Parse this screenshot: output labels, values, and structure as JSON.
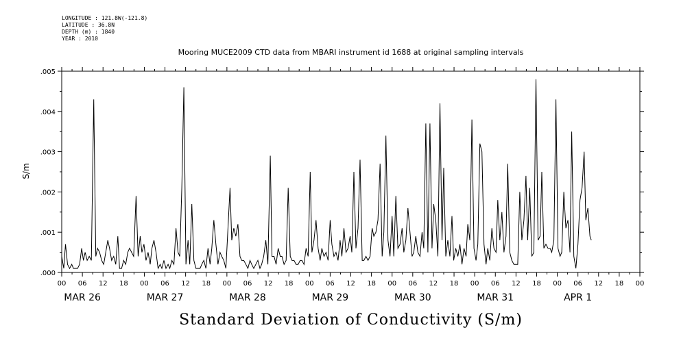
{
  "meta": {
    "longitude": "LONGITUDE : 121.8W(-121.8)",
    "latitude": "LATITUDE : 36.8N",
    "depth": "DEPTH (m) : 1840",
    "year": "YEAR : 2010"
  },
  "chart_data": {
    "type": "line",
    "title": "Mooring MUCE2009 CTD data from MBARI instrument id 1688 at original sampling intervals",
    "xlabel": "Standard Deviation of Conductivity (S/m)",
    "ylabel": "S/m",
    "x_unit": "hours since MAR 26 00:00",
    "xlim": [
      0,
      168
    ],
    "ylim": [
      0,
      0.005
    ],
    "y_ticks": [
      ".000",
      ".001",
      ".002",
      ".003",
      ".004",
      ".005"
    ],
    "x_tick_labels": [
      "00",
      "06",
      "12",
      "18",
      "00",
      "06",
      "12",
      "18",
      "00",
      "06",
      "12",
      "18",
      "00",
      "06",
      "12",
      "18",
      "00",
      "06",
      "12",
      "18",
      "00",
      "06",
      "12",
      "18",
      "00",
      "06",
      "12",
      "18",
      "00"
    ],
    "date_labels": [
      {
        "label": "MAR 26",
        "hour": 6
      },
      {
        "label": "MAR 27",
        "hour": 30
      },
      {
        "label": "MAR 28",
        "hour": 54
      },
      {
        "label": "MAR 29",
        "hour": 78
      },
      {
        "label": "MAR 30",
        "hour": 102
      },
      {
        "label": "MAR 31",
        "hour": 126
      },
      {
        "label": "APR  1",
        "hour": 150
      }
    ],
    "series": [
      {
        "name": "std conductivity",
        "points": [
          [
            0,
            0.0004
          ],
          [
            0.6,
            0.0001
          ],
          [
            1.1,
            0.0007
          ],
          [
            1.7,
            0.0002
          ],
          [
            2.3,
            0.0001
          ],
          [
            2.9,
            0.0002
          ],
          [
            3.4,
            0.0001
          ],
          [
            4,
            0.0001
          ],
          [
            4.6,
            0.0001
          ],
          [
            5.2,
            0.0002
          ],
          [
            5.8,
            0.0006
          ],
          [
            6.3,
            0.0003
          ],
          [
            6.8,
            0.0005
          ],
          [
            7.4,
            0.0003
          ],
          [
            8,
            0.0004
          ],
          [
            8.6,
            0.0003
          ],
          [
            9.3,
            0.0043
          ],
          [
            9.9,
            0.0004
          ],
          [
            10.4,
            0.0006
          ],
          [
            11,
            0.0005
          ],
          [
            11.6,
            0.0003
          ],
          [
            12.2,
            0.0002
          ],
          [
            12.8,
            0.0005
          ],
          [
            13.4,
            0.0008
          ],
          [
            13.9,
            0.0006
          ],
          [
            14.5,
            0.0003
          ],
          [
            15.1,
            0.0004
          ],
          [
            15.7,
            0.0002
          ],
          [
            16.3,
            0.0009
          ],
          [
            16.8,
            0.0001
          ],
          [
            17.4,
            0.0001
          ],
          [
            18,
            0.0003
          ],
          [
            18.6,
            0.0002
          ],
          [
            19.2,
            0.0005
          ],
          [
            19.7,
            0.0006
          ],
          [
            20.3,
            0.0005
          ],
          [
            20.9,
            0.0004
          ],
          [
            21.6,
            0.0019
          ],
          [
            22.2,
            0.0004
          ],
          [
            22.8,
            0.0009
          ],
          [
            23.3,
            0.0005
          ],
          [
            23.9,
            0.0007
          ],
          [
            24.5,
            0.0003
          ],
          [
            25.1,
            0.0005
          ],
          [
            25.7,
            0.0002
          ],
          [
            26.2,
            0.0006
          ],
          [
            26.8,
            0.0008
          ],
          [
            27.4,
            0.0005
          ],
          [
            28,
            0.0001
          ],
          [
            28.6,
            0.0002
          ],
          [
            29.1,
            0.0001
          ],
          [
            29.7,
            0.0003
          ],
          [
            30.3,
            0.0001
          ],
          [
            30.9,
            0.0002
          ],
          [
            31.4,
            0.0001
          ],
          [
            32,
            0.0003
          ],
          [
            32.6,
            0.0002
          ],
          [
            33.2,
            0.0011
          ],
          [
            33.8,
            0.0005
          ],
          [
            34.3,
            0.0004
          ],
          [
            34.9,
            0.0021
          ],
          [
            35.5,
            0.0046
          ],
          [
            36.1,
            0.0002
          ],
          [
            36.7,
            0.0008
          ],
          [
            37.2,
            0.0002
          ],
          [
            37.8,
            0.0017
          ],
          [
            38.4,
            0.0003
          ],
          [
            39,
            0.0001
          ],
          [
            39.6,
            0.0001
          ],
          [
            40.2,
            0.0001
          ],
          [
            40.7,
            0.0002
          ],
          [
            41.3,
            0.0003
          ],
          [
            41.9,
            0.0001
          ],
          [
            42.5,
            0.0006
          ],
          [
            43.1,
            0.0002
          ],
          [
            43.6,
            0.0006
          ],
          [
            44.2,
            0.0013
          ],
          [
            44.8,
            0.0007
          ],
          [
            45.4,
            0.0002
          ],
          [
            46,
            0.0005
          ],
          [
            46.5,
            0.0004
          ],
          [
            47.1,
            0.0003
          ],
          [
            47.7,
            0.0001
          ],
          [
            48.3,
            0.0011
          ],
          [
            48.9,
            0.0021
          ],
          [
            49.4,
            0.0008
          ],
          [
            50,
            0.0011
          ],
          [
            50.6,
            0.0009
          ],
          [
            51.2,
            0.0012
          ],
          [
            51.8,
            0.0004
          ],
          [
            52.3,
            0.0003
          ],
          [
            52.9,
            0.0003
          ],
          [
            53.5,
            0.0002
          ],
          [
            54.1,
            0.0001
          ],
          [
            54.7,
            0.0003
          ],
          [
            55.2,
            0.0002
          ],
          [
            55.8,
            0.0001
          ],
          [
            56.4,
            0.0002
          ],
          [
            57,
            0.0003
          ],
          [
            57.6,
            0.0001
          ],
          [
            58.1,
            0.0002
          ],
          [
            58.7,
            0.0004
          ],
          [
            59.3,
            0.0008
          ],
          [
            59.9,
            0.0002
          ],
          [
            60.6,
            0.0029
          ],
          [
            61.1,
            0.0004
          ],
          [
            61.7,
            0.0004
          ],
          [
            62.3,
            0.0002
          ],
          [
            62.9,
            0.0006
          ],
          [
            63.5,
            0.0004
          ],
          [
            64,
            0.0004
          ],
          [
            64.6,
            0.0002
          ],
          [
            65.2,
            0.0003
          ],
          [
            65.8,
            0.0021
          ],
          [
            66.4,
            0.0004
          ],
          [
            66.9,
            0.0003
          ],
          [
            67.5,
            0.0003
          ],
          [
            68.1,
            0.0002
          ],
          [
            68.7,
            0.0002
          ],
          [
            69.3,
            0.0003
          ],
          [
            69.8,
            0.0003
          ],
          [
            70.4,
            0.0002
          ],
          [
            71,
            0.0006
          ],
          [
            71.6,
            0.0004
          ],
          [
            72.2,
            0.0025
          ],
          [
            72.7,
            0.0005
          ],
          [
            73.3,
            0.0008
          ],
          [
            73.9,
            0.0013
          ],
          [
            74.5,
            0.0006
          ],
          [
            75.1,
            0.0003
          ],
          [
            75.6,
            0.0006
          ],
          [
            76.2,
            0.0004
          ],
          [
            76.8,
            0.0005
          ],
          [
            77.4,
            0.0003
          ],
          [
            78,
            0.0013
          ],
          [
            78.5,
            0.0007
          ],
          [
            79.1,
            0.0004
          ],
          [
            79.7,
            0.0005
          ],
          [
            80.3,
            0.0003
          ],
          [
            80.9,
            0.0008
          ],
          [
            81.4,
            0.0004
          ],
          [
            82,
            0.0011
          ],
          [
            82.6,
            0.0005
          ],
          [
            83.2,
            0.0006
          ],
          [
            83.8,
            0.0009
          ],
          [
            84.3,
            0.0005
          ],
          [
            84.9,
            0.0025
          ],
          [
            85.5,
            0.0006
          ],
          [
            86.1,
            0.0011
          ],
          [
            86.7,
            0.0028
          ],
          [
            87.3,
            0.0003
          ],
          [
            87.8,
            0.0003
          ],
          [
            88.4,
            0.0004
          ],
          [
            89,
            0.0003
          ],
          [
            89.6,
            0.0004
          ],
          [
            90.2,
            0.0011
          ],
          [
            90.7,
            0.0009
          ],
          [
            91.3,
            0.001
          ],
          [
            91.9,
            0.0013
          ],
          [
            92.5,
            0.0027
          ],
          [
            93.1,
            0.0004
          ],
          [
            93.6,
            0.001
          ],
          [
            94.2,
            0.0034
          ],
          [
            94.8,
            0.0008
          ],
          [
            95.4,
            0.0004
          ],
          [
            96,
            0.0014
          ],
          [
            96.5,
            0.0004
          ],
          [
            97.1,
            0.0019
          ],
          [
            97.7,
            0.0006
          ],
          [
            98.3,
            0.0007
          ],
          [
            98.9,
            0.0011
          ],
          [
            99.4,
            0.0005
          ],
          [
            100,
            0.0008
          ],
          [
            100.6,
            0.0016
          ],
          [
            101.2,
            0.001
          ],
          [
            101.8,
            0.0004
          ],
          [
            102.3,
            0.0005
          ],
          [
            102.9,
            0.0009
          ],
          [
            103.5,
            0.0005
          ],
          [
            104.1,
            0.0004
          ],
          [
            104.7,
            0.001
          ],
          [
            105.2,
            0.0006
          ],
          [
            105.8,
            0.0037
          ],
          [
            106.4,
            0.0005
          ],
          [
            107,
            0.0037
          ],
          [
            107.6,
            0.0006
          ],
          [
            108.1,
            0.0017
          ],
          [
            108.7,
            0.0013
          ],
          [
            109.3,
            0.0004
          ],
          [
            109.9,
            0.0042
          ],
          [
            110.5,
            0.0008
          ],
          [
            111,
            0.0026
          ],
          [
            111.6,
            0.0004
          ],
          [
            112.2,
            0.0008
          ],
          [
            112.8,
            0.0004
          ],
          [
            113.4,
            0.0014
          ],
          [
            113.9,
            0.0003
          ],
          [
            114.5,
            0.0006
          ],
          [
            115.1,
            0.0004
          ],
          [
            115.7,
            0.0007
          ],
          [
            116.3,
            0.0002
          ],
          [
            116.9,
            0.0006
          ],
          [
            117.5,
            0.0004
          ],
          [
            118,
            0.0012
          ],
          [
            118.6,
            0.0008
          ],
          [
            119.2,
            0.0038
          ],
          [
            119.8,
            0.0006
          ],
          [
            120.4,
            0.0003
          ],
          [
            120.9,
            0.0007
          ],
          [
            121.5,
            0.0032
          ],
          [
            122.1,
            0.003
          ],
          [
            122.7,
            0.0007
          ],
          [
            123.3,
            0.0002
          ],
          [
            123.8,
            0.0006
          ],
          [
            124.4,
            0.0003
          ],
          [
            125,
            0.0011
          ],
          [
            125.6,
            0.0006
          ],
          [
            126.2,
            0.0005
          ],
          [
            126.7,
            0.0018
          ],
          [
            127.3,
            0.0008
          ],
          [
            127.9,
            0.0015
          ],
          [
            128.5,
            0.0005
          ],
          [
            129.1,
            0.0009
          ],
          [
            129.6,
            0.0027
          ],
          [
            130.2,
            0.0005
          ],
          [
            130.8,
            0.0003
          ],
          [
            131.4,
            0.0002
          ],
          [
            132,
            0.0002
          ],
          [
            132.5,
            0.0002
          ],
          [
            133.1,
            0.002
          ],
          [
            133.7,
            0.0008
          ],
          [
            134.3,
            0.0013
          ],
          [
            134.9,
            0.0024
          ],
          [
            135.4,
            0.0008
          ],
          [
            136,
            0.0021
          ],
          [
            136.6,
            0.0004
          ],
          [
            137.2,
            0.0005
          ],
          [
            137.8,
            0.0048
          ],
          [
            138.4,
            0.0008
          ],
          [
            139,
            0.0009
          ],
          [
            139.5,
            0.0025
          ],
          [
            140.1,
            0.0006
          ],
          [
            140.7,
            0.0007
          ],
          [
            141.3,
            0.0006
          ],
          [
            141.9,
            0.0006
          ],
          [
            142.4,
            0.0005
          ],
          [
            143,
            0.0008
          ],
          [
            143.6,
            0.0043
          ],
          [
            144.2,
            0.0006
          ],
          [
            144.8,
            0.0004
          ],
          [
            145.3,
            0.0005
          ],
          [
            145.9,
            0.002
          ],
          [
            146.5,
            0.0011
          ],
          [
            147.1,
            0.0013
          ],
          [
            147.7,
            0.0005
          ],
          [
            148.2,
            0.0035
          ],
          [
            148.8,
            0.0004
          ],
          [
            149.4,
            0.0001
          ],
          [
            150,
            0.0007
          ],
          [
            150.6,
            0.0018
          ],
          [
            151.2,
            0.0021
          ],
          [
            151.8,
            0.003
          ],
          [
            152.3,
            0.0013
          ],
          [
            152.9,
            0.0016
          ],
          [
            153.5,
            0.0009
          ],
          [
            153.9,
            0.0008
          ]
        ]
      }
    ]
  }
}
